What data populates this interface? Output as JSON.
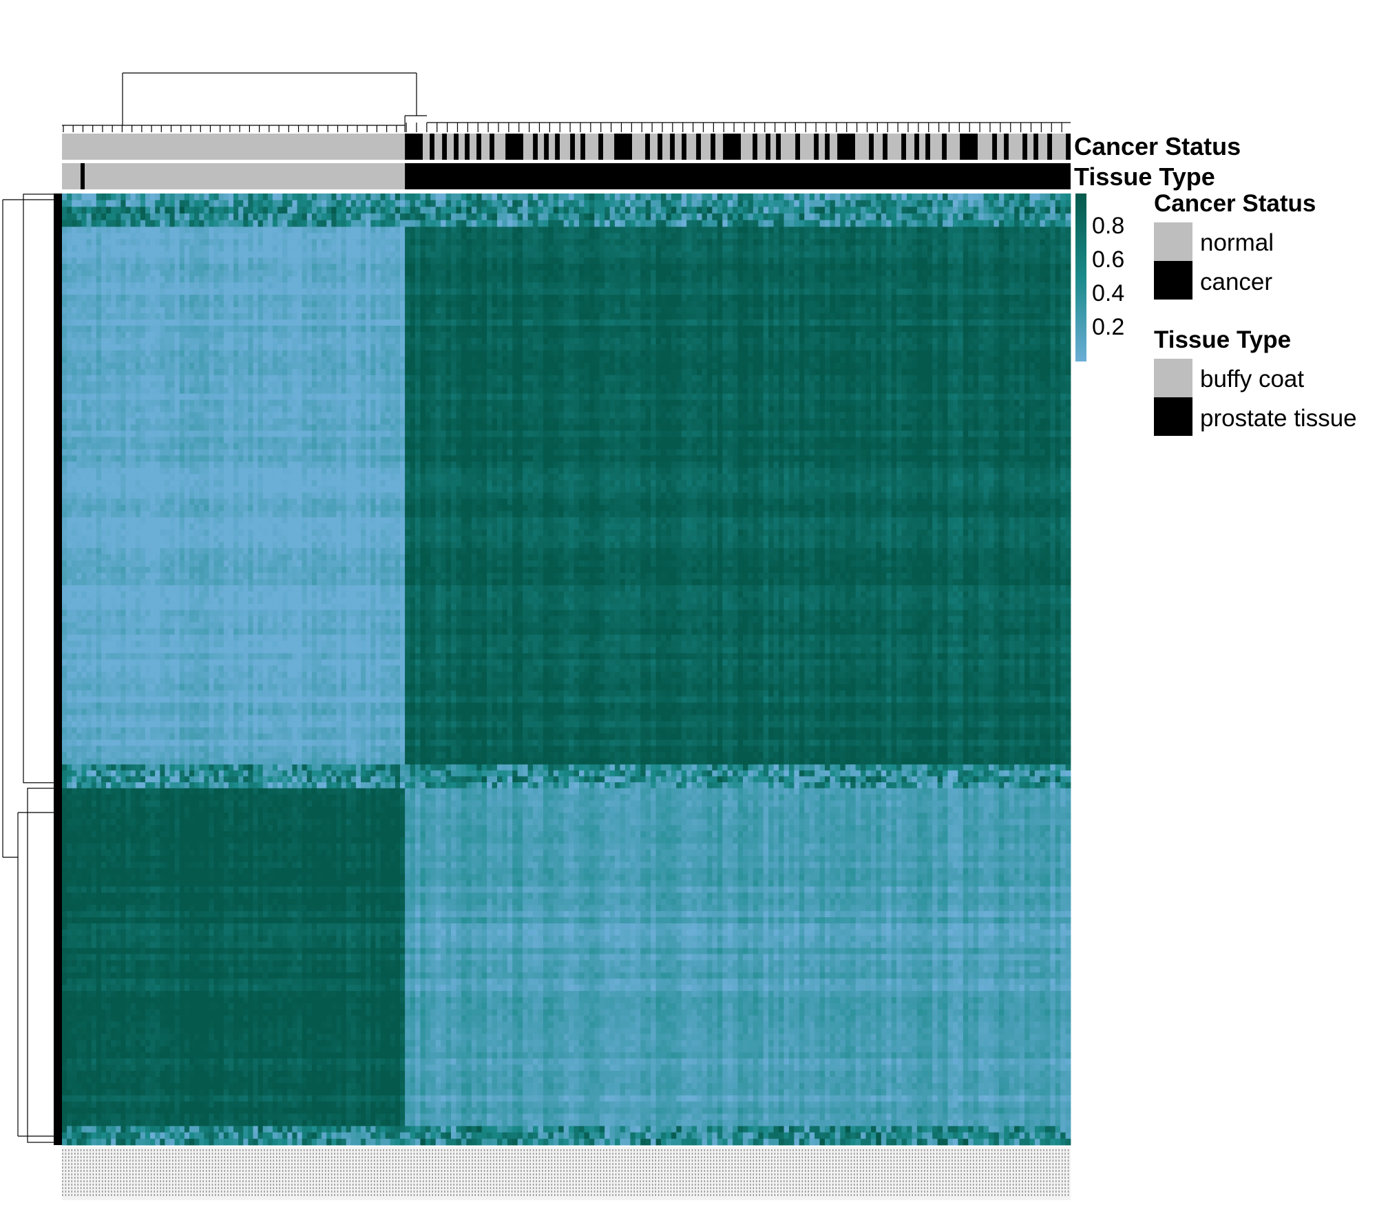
{
  "chart_data": {
    "type": "heatmap",
    "title": "",
    "xlabel": "",
    "ylabel": "",
    "color_scale": {
      "low_color": "#6baed6",
      "mid_color": "#1b8a8a",
      "high_color": "#05594c",
      "ticks": [
        0.8,
        0.6,
        0.4,
        0.2
      ],
      "tick_labels": [
        "0.8",
        "0.6",
        "0.4",
        "0.2"
      ],
      "range": [
        0.1,
        0.9
      ]
    },
    "column_annotations": [
      {
        "name": "Cancer Status",
        "levels": [
          {
            "label": "normal",
            "color": "#bebebe"
          },
          {
            "label": "cancer",
            "color": "#000000"
          }
        ]
      },
      {
        "name": "Tissue Type",
        "levels": [
          {
            "label": "buffy coat",
            "color": "#bebebe"
          },
          {
            "label": "prostate tissue",
            "color": "#000000"
          }
        ]
      }
    ],
    "sample_groups": [
      {
        "tissue": "buffy coat",
        "cancer_status": "normal",
        "column_fraction": 0.34
      },
      {
        "tissue": "prostate tissue",
        "cancer_status": "mixed",
        "column_fraction": 0.66
      }
    ],
    "row_clusters": [
      {
        "name": "mixed",
        "row_fraction": 0.035,
        "buffy_coat_value": 0.45,
        "prostate_value": 0.45
      },
      {
        "name": "hypomethylated in buffy coat",
        "row_fraction": 0.565,
        "buffy_coat_value": 0.15,
        "prostate_value": 0.82
      },
      {
        "name": "mixed",
        "row_fraction": 0.025,
        "buffy_coat_value": 0.45,
        "prostate_value": 0.45
      },
      {
        "name": "hypermethylated in buffy coat",
        "row_fraction": 0.355,
        "buffy_coat_value": 0.85,
        "prostate_value": 0.25
      },
      {
        "name": "mixed",
        "row_fraction": 0.02,
        "buffy_coat_value": 0.45,
        "prostate_value": 0.45
      }
    ],
    "legend_position": "right"
  }
}
